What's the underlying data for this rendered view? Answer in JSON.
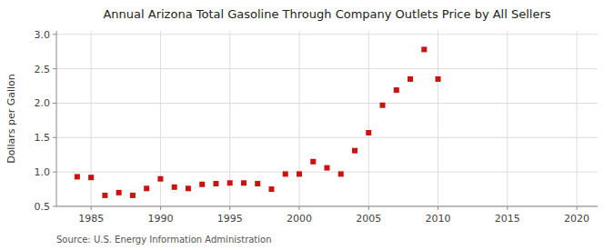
{
  "chart_data": {
    "type": "scatter",
    "title": "Annual Arizona Total Gasoline Through Company Outlets Price by All Sellers",
    "y_label": "Dollars per Gallon",
    "annotations": [
      "Source: U.S. Energy Information Administration"
    ],
    "x": [
      1984,
      1985,
      1986,
      1987,
      1988,
      1989,
      1990,
      1991,
      1992,
      1993,
      1994,
      1995,
      1996,
      1997,
      1998,
      1999,
      2000,
      2001,
      2002,
      2003,
      2004,
      2005,
      2006,
      2007,
      2008,
      2009,
      2010
    ],
    "values": [
      0.93,
      0.92,
      0.66,
      0.7,
      0.66,
      0.76,
      0.9,
      0.78,
      0.76,
      0.82,
      0.83,
      0.84,
      0.84,
      0.83,
      0.75,
      0.97,
      0.97,
      1.15,
      1.06,
      0.97,
      1.31,
      1.57,
      1.97,
      2.19,
      2.35,
      2.78,
      2.35
    ],
    "color": "#cc1111",
    "marker": "square",
    "xlim": [
      1982.5,
      2021.5
    ],
    "ylim": [
      0.5,
      3.05
    ],
    "xticks": [
      1985,
      1990,
      1995,
      2000,
      2005,
      2010,
      2015,
      2020
    ],
    "yticks": [
      0.5,
      {
        "value": 1.0,
        "label": "1.0"
      },
      1.5,
      {
        "value": 2.0,
        "label": "2.0"
      },
      2.5,
      {
        "value": 3.0,
        "label": "3.0"
      }
    ],
    "grid": true
  }
}
